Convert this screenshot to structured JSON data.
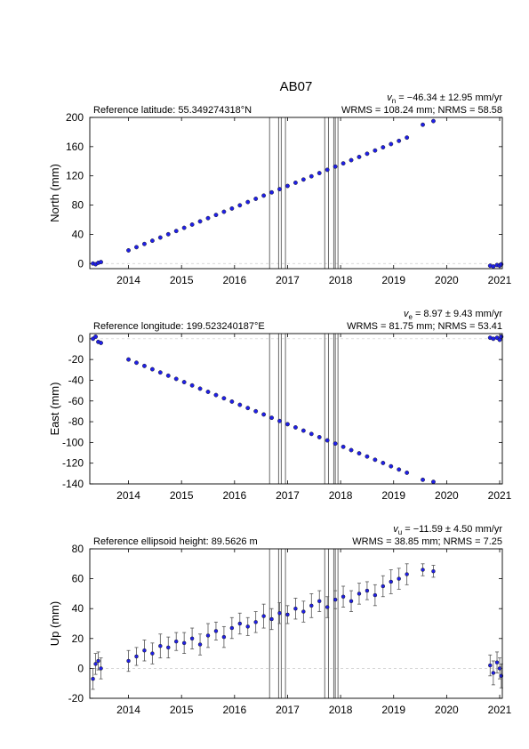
{
  "title": "AB07",
  "chart_data": [
    {
      "type": "scatter",
      "ylabel": "North (mm)",
      "subtitle": "Reference latitude: 55.349274318°N",
      "rate_symbol": "v",
      "rate_sub": "n",
      "rate_text": " = −46.34 ± 12.95 mm/yr",
      "stats": "WRMS = 108.24 mm; NRMS = 58.58",
      "xlim": [
        2013.27,
        2021.05
      ],
      "xticks": [
        2014,
        2015,
        2016,
        2017,
        2018,
        2019,
        2020,
        2021
      ],
      "ylim": [
        -7,
        200
      ],
      "yticks": [
        0,
        40,
        80,
        120,
        160,
        200
      ],
      "zero_line": true,
      "color": "#1f1fe8",
      "line_color": "#444444",
      "vlines": [
        2016.66,
        2016.83,
        2016.88,
        2016.96,
        2017.7,
        2017.77,
        2017.87,
        2017.9,
        2017.95
      ],
      "x": [
        2013.33,
        2013.38,
        2013.43,
        2013.48,
        2014.0,
        2014.15,
        2014.3,
        2014.45,
        2014.6,
        2014.75,
        2014.9,
        2015.05,
        2015.2,
        2015.35,
        2015.5,
        2015.65,
        2015.8,
        2015.95,
        2016.1,
        2016.25,
        2016.4,
        2016.55,
        2016.7,
        2016.85,
        2017.0,
        2017.15,
        2017.3,
        2017.45,
        2017.6,
        2017.75,
        2017.9,
        2018.05,
        2018.2,
        2018.35,
        2018.5,
        2018.65,
        2018.8,
        2018.95,
        2019.1,
        2019.25,
        2019.55,
        2019.75,
        2020.82,
        2020.88,
        2020.95,
        2021.0,
        2021.03
      ],
      "values": [
        0,
        -1,
        1,
        2,
        18,
        22.4,
        26.8,
        31.2,
        35.6,
        40.1,
        44.5,
        48.9,
        53.3,
        57.7,
        62.1,
        66.5,
        70.9,
        75.3,
        79.7,
        84.2,
        88.6,
        93,
        97.4,
        101.8,
        106.2,
        110.6,
        115,
        119.4,
        123.8,
        128.3,
        132.7,
        137.1,
        141.5,
        145.9,
        150.3,
        154.7,
        159.1,
        163.5,
        167.9,
        172.4,
        190,
        195,
        -3,
        -4,
        -2,
        -3,
        -1
      ]
    },
    {
      "type": "scatter",
      "ylabel": "East (mm)",
      "subtitle": "Reference longitude: 199.523240187°E",
      "rate_symbol": "v",
      "rate_sub": "e",
      "rate_text": " = 8.97 ± 9.43 mm/yr",
      "stats": "WRMS = 81.75 mm; NRMS = 53.41",
      "xlim": [
        2013.27,
        2021.05
      ],
      "xticks": [
        2014,
        2015,
        2016,
        2017,
        2018,
        2019,
        2020,
        2021
      ],
      "ylim": [
        -140,
        5
      ],
      "yticks": [
        -140,
        -120,
        -100,
        -80,
        -60,
        -40,
        -20,
        0
      ],
      "zero_line": true,
      "color": "#1f1fe8",
      "line_color": "#444444",
      "vlines": [
        2016.66,
        2016.83,
        2016.88,
        2016.96,
        2017.7,
        2017.77,
        2017.87,
        2017.9,
        2017.95
      ],
      "x": [
        2013.33,
        2013.38,
        2013.43,
        2013.48,
        2014.0,
        2014.15,
        2014.3,
        2014.45,
        2014.6,
        2014.75,
        2014.9,
        2015.05,
        2015.2,
        2015.35,
        2015.5,
        2015.65,
        2015.8,
        2015.95,
        2016.1,
        2016.25,
        2016.4,
        2016.55,
        2016.7,
        2016.85,
        2017.0,
        2017.15,
        2017.3,
        2017.45,
        2017.6,
        2017.75,
        2017.9,
        2018.05,
        2018.2,
        2018.35,
        2018.5,
        2018.65,
        2018.8,
        2018.95,
        2019.1,
        2019.25,
        2019.55,
        2019.75,
        2020.82,
        2020.88,
        2020.95,
        2021.0,
        2021.03
      ],
      "values": [
        0,
        2,
        -3,
        -4,
        -20,
        -23.1,
        -26.2,
        -29.4,
        -32.5,
        -35.6,
        -38.7,
        -41.8,
        -45,
        -48.1,
        -51.2,
        -54.3,
        -57.4,
        -60.6,
        -63.7,
        -66.8,
        -69.9,
        -73,
        -76.2,
        -79.3,
        -82.4,
        -85.5,
        -88.6,
        -91.8,
        -94.9,
        -98,
        -101.1,
        -104.2,
        -107.4,
        -110.5,
        -113.6,
        -116.7,
        -119.8,
        -123,
        -126.1,
        -129.2,
        -136,
        -138,
        1,
        0,
        1,
        -1,
        2
      ]
    },
    {
      "type": "errorbar",
      "ylabel": "Up (mm)",
      "subtitle": "Reference ellipsoid height: 89.5626 m",
      "rate_symbol": "v",
      "rate_sub": "u",
      "rate_text": " = −11.59 ± 4.50 mm/yr",
      "stats": "WRMS = 38.85 mm; NRMS = 7.25",
      "xlim": [
        2013.27,
        2021.05
      ],
      "xticks": [
        2014,
        2015,
        2016,
        2017,
        2018,
        2019,
        2020,
        2021
      ],
      "ylim": [
        -20,
        80
      ],
      "yticks": [
        -20,
        0,
        20,
        40,
        60,
        80
      ],
      "zero_line": true,
      "color": "#1f1fe8",
      "line_color": "#444444",
      "error_color": "#555555",
      "vlines": [
        2016.66,
        2016.83,
        2016.88,
        2016.96,
        2017.7,
        2017.77,
        2017.87,
        2017.9,
        2017.95
      ],
      "x": [
        2013.33,
        2013.38,
        2013.43,
        2013.48,
        2014.0,
        2014.15,
        2014.3,
        2014.45,
        2014.6,
        2014.75,
        2014.9,
        2015.05,
        2015.2,
        2015.35,
        2015.5,
        2015.65,
        2015.8,
        2015.95,
        2016.1,
        2016.25,
        2016.4,
        2016.55,
        2016.7,
        2016.85,
        2017.0,
        2017.15,
        2017.3,
        2017.45,
        2017.6,
        2017.75,
        2017.9,
        2018.05,
        2018.2,
        2018.35,
        2018.5,
        2018.65,
        2018.8,
        2018.95,
        2019.1,
        2019.25,
        2019.55,
        2019.75,
        2020.82,
        2020.88,
        2020.95,
        2021.0,
        2021.03
      ],
      "values": [
        -7,
        3,
        5,
        0,
        5,
        8,
        12,
        10,
        15,
        14,
        18,
        17,
        20,
        16,
        22,
        25,
        21,
        27,
        30,
        28,
        31,
        35,
        33,
        37,
        36,
        40,
        38,
        42,
        45,
        41,
        46,
        48,
        45,
        50,
        52,
        49,
        55,
        58,
        60,
        63,
        66,
        65,
        2,
        -3,
        4,
        0,
        -5
      ],
      "errors": [
        7,
        7,
        6,
        7,
        7,
        6,
        7,
        7,
        8,
        7,
        6,
        7,
        7,
        7,
        8,
        6,
        7,
        7,
        7,
        6,
        7,
        8,
        7,
        7,
        6,
        7,
        7,
        8,
        7,
        7,
        6,
        7,
        7,
        7,
        6,
        7,
        7,
        8,
        7,
        7,
        4,
        4,
        7,
        8,
        7,
        7,
        8
      ]
    }
  ]
}
